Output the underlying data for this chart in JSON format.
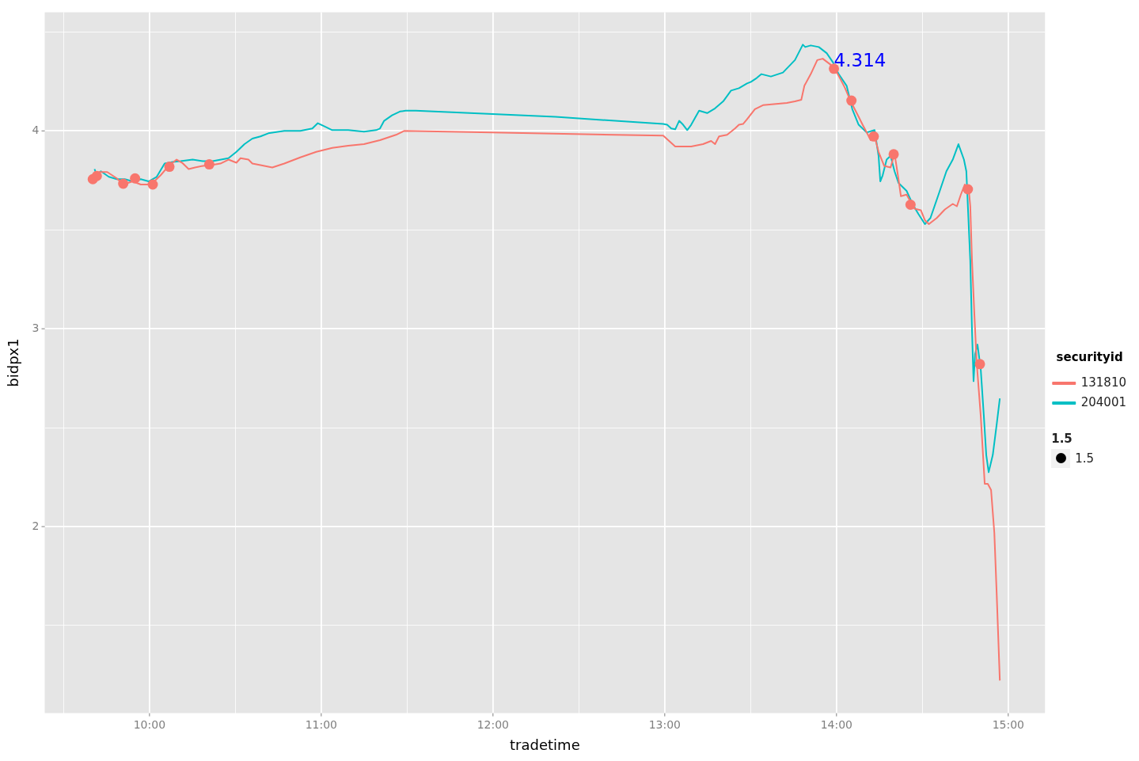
{
  "chart_data": {
    "type": "line",
    "xlabel": "tradetime",
    "ylabel": "bidpx1",
    "legend_title": "securityid",
    "legend": "right",
    "grid": true,
    "line_style": "solid",
    "xlim": [
      9.39,
      15.214
    ],
    "ylim": [
      1.057,
      4.6
    ],
    "xticks": [
      {
        "value": 9.5,
        "label": null
      },
      {
        "value": 10,
        "label": "10:00"
      },
      {
        "value": 10.5,
        "label": null
      },
      {
        "value": 11,
        "label": "11:00"
      },
      {
        "value": 11.5,
        "label": null
      },
      {
        "value": 12,
        "label": "12:00"
      },
      {
        "value": 12.5,
        "label": null
      },
      {
        "value": 13,
        "label": "13:00"
      },
      {
        "value": 13.5,
        "label": null
      },
      {
        "value": 14,
        "label": "14:00"
      },
      {
        "value": 14.5,
        "label": null
      },
      {
        "value": 15,
        "label": "15:00"
      }
    ],
    "yticks": [
      {
        "value": 1.5,
        "label": null
      },
      2,
      {
        "value": 2.5,
        "label": null
      },
      3,
      {
        "value": 3.5,
        "label": null
      },
      4,
      {
        "value": 4.5,
        "label": null
      }
    ],
    "series": [
      {
        "name": "131810",
        "color": "#f8766d",
        "x": [
          9.647,
          9.67,
          9.707,
          9.754,
          9.81,
          9.847,
          9.902,
          9.949,
          10.009,
          10.065,
          10.111,
          10.158,
          10.19,
          10.228,
          10.265,
          10.311,
          10.358,
          10.413,
          10.46,
          10.506,
          10.53,
          10.576,
          10.599,
          10.646,
          10.715,
          10.785,
          10.878,
          10.971,
          11.064,
          11.157,
          11.249,
          11.342,
          11.435,
          11.482,
          11.993,
          12.991,
          13.061,
          13.154,
          13.223,
          13.27,
          13.293,
          13.316,
          13.363,
          13.409,
          13.432,
          13.456,
          13.479,
          13.525,
          13.572,
          13.711,
          13.758,
          13.795,
          13.813,
          13.85,
          13.888,
          13.92,
          13.967,
          13.99,
          14.027,
          14.05,
          14.083,
          14.129,
          14.152,
          14.176,
          14.199,
          14.222,
          14.245,
          14.278,
          14.315,
          14.338,
          14.361,
          14.375,
          14.408,
          14.454,
          14.491,
          14.515,
          14.538,
          14.584,
          14.631,
          14.677,
          14.701,
          14.724,
          14.747,
          14.77,
          14.779,
          14.789,
          14.803,
          14.816,
          14.84,
          14.863,
          14.881,
          14.9,
          14.919,
          14.933,
          14.951
        ],
        "values": [
          3.745,
          3.768,
          3.792,
          3.792,
          3.76,
          3.729,
          3.745,
          3.729,
          3.729,
          3.776,
          3.823,
          3.855,
          3.839,
          3.807,
          3.815,
          3.823,
          3.827,
          3.835,
          3.855,
          3.839,
          3.862,
          3.855,
          3.835,
          3.827,
          3.815,
          3.835,
          3.866,
          3.894,
          3.914,
          3.925,
          3.933,
          3.953,
          3.98,
          4.0,
          3.992,
          3.976,
          3.921,
          3.921,
          3.933,
          3.949,
          3.933,
          3.972,
          3.98,
          4.012,
          4.031,
          4.035,
          4.059,
          4.11,
          4.13,
          4.141,
          4.149,
          4.157,
          4.228,
          4.287,
          4.358,
          4.365,
          4.334,
          4.314,
          4.255,
          4.216,
          4.149,
          4.071,
          4.031,
          3.992,
          3.953,
          3.972,
          3.894,
          3.823,
          3.815,
          3.886,
          3.756,
          3.67,
          3.678,
          3.607,
          3.599,
          3.548,
          3.529,
          3.56,
          3.603,
          3.631,
          3.619,
          3.678,
          3.729,
          3.705,
          3.619,
          3.344,
          3.069,
          2.833,
          2.558,
          2.216,
          2.216,
          2.185,
          1.969,
          1.654,
          1.222
        ]
      },
      {
        "name": "204001",
        "color": "#00bfc4",
        "x": [
          9.68,
          9.693,
          9.717,
          9.763,
          9.81,
          9.856,
          9.902,
          9.949,
          9.995,
          10.042,
          10.088,
          10.135,
          10.181,
          10.251,
          10.311,
          10.367,
          10.46,
          10.506,
          10.553,
          10.599,
          10.646,
          10.692,
          10.785,
          10.878,
          10.948,
          10.98,
          11.017,
          11.064,
          11.157,
          11.249,
          11.319,
          11.342,
          11.366,
          11.412,
          11.458,
          11.491,
          11.551,
          12.364,
          12.991,
          13.014,
          13.038,
          13.061,
          13.084,
          13.107,
          13.131,
          13.154,
          13.2,
          13.247,
          13.293,
          13.34,
          13.386,
          13.432,
          13.479,
          13.502,
          13.535,
          13.563,
          13.618,
          13.688,
          13.758,
          13.804,
          13.818,
          13.85,
          13.897,
          13.943,
          13.98,
          14.013,
          14.059,
          14.092,
          14.129,
          14.176,
          14.222,
          14.245,
          14.255,
          14.269,
          14.292,
          14.315,
          14.338,
          14.361,
          14.408,
          14.445,
          14.477,
          14.515,
          14.547,
          14.594,
          14.64,
          14.677,
          14.71,
          14.742,
          14.756,
          14.779,
          14.789,
          14.798,
          14.807,
          14.821,
          14.84,
          14.858,
          14.872,
          14.886,
          14.91,
          14.933,
          14.951
        ],
        "values": [
          3.807,
          3.776,
          3.796,
          3.768,
          3.756,
          3.756,
          3.745,
          3.756,
          3.745,
          3.768,
          3.835,
          3.843,
          3.847,
          3.855,
          3.847,
          3.847,
          3.862,
          3.894,
          3.933,
          3.961,
          3.972,
          3.988,
          4.0,
          4.0,
          4.012,
          4.039,
          4.024,
          4.004,
          4.004,
          3.996,
          4.004,
          4.012,
          4.051,
          4.079,
          4.098,
          4.102,
          4.102,
          4.071,
          4.035,
          4.031,
          4.012,
          4.008,
          4.051,
          4.031,
          4.004,
          4.031,
          4.102,
          4.09,
          4.114,
          4.149,
          4.204,
          4.216,
          4.24,
          4.248,
          4.267,
          4.287,
          4.275,
          4.295,
          4.358,
          4.436,
          4.424,
          4.432,
          4.424,
          4.393,
          4.346,
          4.287,
          4.228,
          4.11,
          4.031,
          3.992,
          4.004,
          3.874,
          3.745,
          3.776,
          3.855,
          3.874,
          3.796,
          3.737,
          3.697,
          3.627,
          3.58,
          3.529,
          3.56,
          3.678,
          3.796,
          3.855,
          3.933,
          3.855,
          3.796,
          3.344,
          2.99,
          2.735,
          2.872,
          2.92,
          2.794,
          2.558,
          2.362,
          2.275,
          2.362,
          2.519,
          2.648
        ]
      },
      {
        "type": "scatter",
        "marker": "circle",
        "color": "#f8766d",
        "x": [
          9.67,
          9.693,
          9.847,
          9.916,
          10.019,
          10.116,
          10.348,
          13.985,
          14.087,
          14.217,
          14.333,
          14.431,
          14.765,
          14.835
        ],
        "values": [
          3.756,
          3.772,
          3.733,
          3.76,
          3.729,
          3.819,
          3.831,
          4.314,
          4.153,
          3.972,
          3.882,
          3.627,
          3.705,
          2.821
        ]
      }
    ],
    "annotations": [
      {
        "text": "4.314",
        "x": 13.985,
        "y": 4.314
      },
      "1.5",
      "1.5"
    ]
  }
}
